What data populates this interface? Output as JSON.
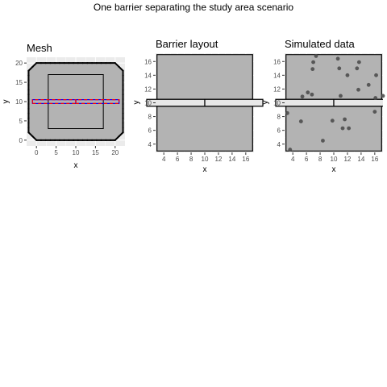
{
  "figure": {
    "title": "One barrier separating the study area scenario"
  },
  "chart_data": [
    {
      "type": "scatter",
      "title": "Mesh",
      "xlabel": "x",
      "ylabel": "y",
      "xlim": [
        -2.5,
        22.5
      ],
      "ylim": [
        -1.5,
        21.5
      ],
      "xticks": [
        0,
        5,
        10,
        15,
        20
      ],
      "yticks": [
        0,
        5,
        10,
        15,
        20
      ],
      "grid": true,
      "outer_boundary": [
        [
          -2,
          2
        ],
        [
          0,
          0
        ],
        [
          20,
          0
        ],
        [
          22,
          2
        ],
        [
          22,
          18
        ],
        [
          20,
          20
        ],
        [
          0,
          20
        ],
        [
          -2,
          18
        ]
      ],
      "inner_study_area": [
        [
          3,
          3
        ],
        [
          17,
          3
        ],
        [
          17,
          17
        ],
        [
          3,
          17
        ]
      ],
      "barrier_left": [
        [
          -1,
          9.5
        ],
        [
          10,
          9.5
        ],
        [
          10,
          10.5
        ],
        [
          -1,
          10.5
        ]
      ],
      "barrier_right": [
        [
          10,
          9.5
        ],
        [
          21,
          9.5
        ],
        [
          21,
          10.5
        ],
        [
          10,
          10.5
        ]
      ],
      "colors": {
        "panel": "#ebebeb",
        "grid": "#ffffff",
        "mesh_fill": "#b3b3b3",
        "boundary": "#000000",
        "barrier_outline": "#0000ff",
        "barrier_dash": "#ff0000"
      }
    },
    {
      "type": "scatter",
      "title": "Barrier layout",
      "xlabel": "x",
      "ylabel": "y",
      "xlim": [
        2.8,
        17.2
      ],
      "ylim": [
        2.8,
        17.2
      ],
      "xticks": [
        4,
        6,
        8,
        10,
        12,
        14,
        16
      ],
      "yticks": [
        4,
        6,
        8,
        10,
        12,
        14,
        16
      ],
      "grid": true,
      "top_region": [
        [
          3,
          10.5
        ],
        [
          17,
          10.5
        ],
        [
          17,
          17
        ],
        [
          3,
          17
        ]
      ],
      "bottom_region": [
        [
          3,
          3
        ],
        [
          17,
          3
        ],
        [
          17,
          9.5
        ],
        [
          3,
          9.5
        ]
      ],
      "barrier_left": [
        [
          1.5,
          9.5
        ],
        [
          10,
          9.5
        ],
        [
          10,
          10.5
        ],
        [
          1.5,
          10.5
        ]
      ],
      "barrier_right": [
        [
          10,
          9.5
        ],
        [
          18.5,
          9.5
        ],
        [
          18.5,
          10.5
        ],
        [
          10,
          10.5
        ]
      ],
      "colors": {
        "panel": "#ebebeb",
        "region_fill": "#b3b3b3",
        "barrier_fill": "#e8e8e8",
        "outline": "#000000"
      }
    },
    {
      "type": "scatter",
      "title": "Simulated data",
      "xlabel": "x",
      "ylabel": "y",
      "xlim": [
        2.8,
        17.2
      ],
      "ylim": [
        2.8,
        17.2
      ],
      "xticks": [
        4,
        6,
        8,
        10,
        12,
        14,
        16
      ],
      "yticks": [
        4,
        6,
        8,
        10,
        12,
        14,
        16
      ],
      "grid": true,
      "top_region": [
        [
          3,
          10.5
        ],
        [
          17,
          10.5
        ],
        [
          17,
          17
        ],
        [
          3,
          17
        ]
      ],
      "bottom_region": [
        [
          3,
          3
        ],
        [
          17,
          3
        ],
        [
          17,
          9.5
        ],
        [
          3,
          9.5
        ]
      ],
      "barrier_left": [
        [
          1.5,
          9.5
        ],
        [
          10,
          9.5
        ],
        [
          10,
          10.5
        ],
        [
          1.5,
          10.5
        ]
      ],
      "barrier_right": [
        [
          10,
          9.5
        ],
        [
          18.5,
          9.5
        ],
        [
          18.5,
          10.5
        ],
        [
          10,
          10.5
        ]
      ],
      "points": [
        [
          7.4,
          16.8
        ],
        [
          10.6,
          16.4
        ],
        [
          7.0,
          15.9
        ],
        [
          13.7,
          15.9
        ],
        [
          6.9,
          14.9
        ],
        [
          10.8,
          15.0
        ],
        [
          13.4,
          15.0
        ],
        [
          16.2,
          14.0
        ],
        [
          12.0,
          14.0
        ],
        [
          15.1,
          12.6
        ],
        [
          13.6,
          11.9
        ],
        [
          6.2,
          11.5
        ],
        [
          6.8,
          11.2
        ],
        [
          5.4,
          10.9
        ],
        [
          11.0,
          11.0
        ],
        [
          16.1,
          10.7
        ],
        [
          17.2,
          11.0
        ],
        [
          3.2,
          8.5
        ],
        [
          16.0,
          8.7
        ],
        [
          5.2,
          7.3
        ],
        [
          9.8,
          7.4
        ],
        [
          11.6,
          7.6
        ],
        [
          11.3,
          6.3
        ],
        [
          12.2,
          6.3
        ],
        [
          8.4,
          4.5
        ],
        [
          3.6,
          3.2
        ]
      ],
      "colors": {
        "panel": "#ebebeb",
        "region_fill": "#b3b3b3",
        "barrier_fill": "#e8e8e8",
        "outline": "#000000",
        "point": "#4d4d4d"
      }
    }
  ]
}
